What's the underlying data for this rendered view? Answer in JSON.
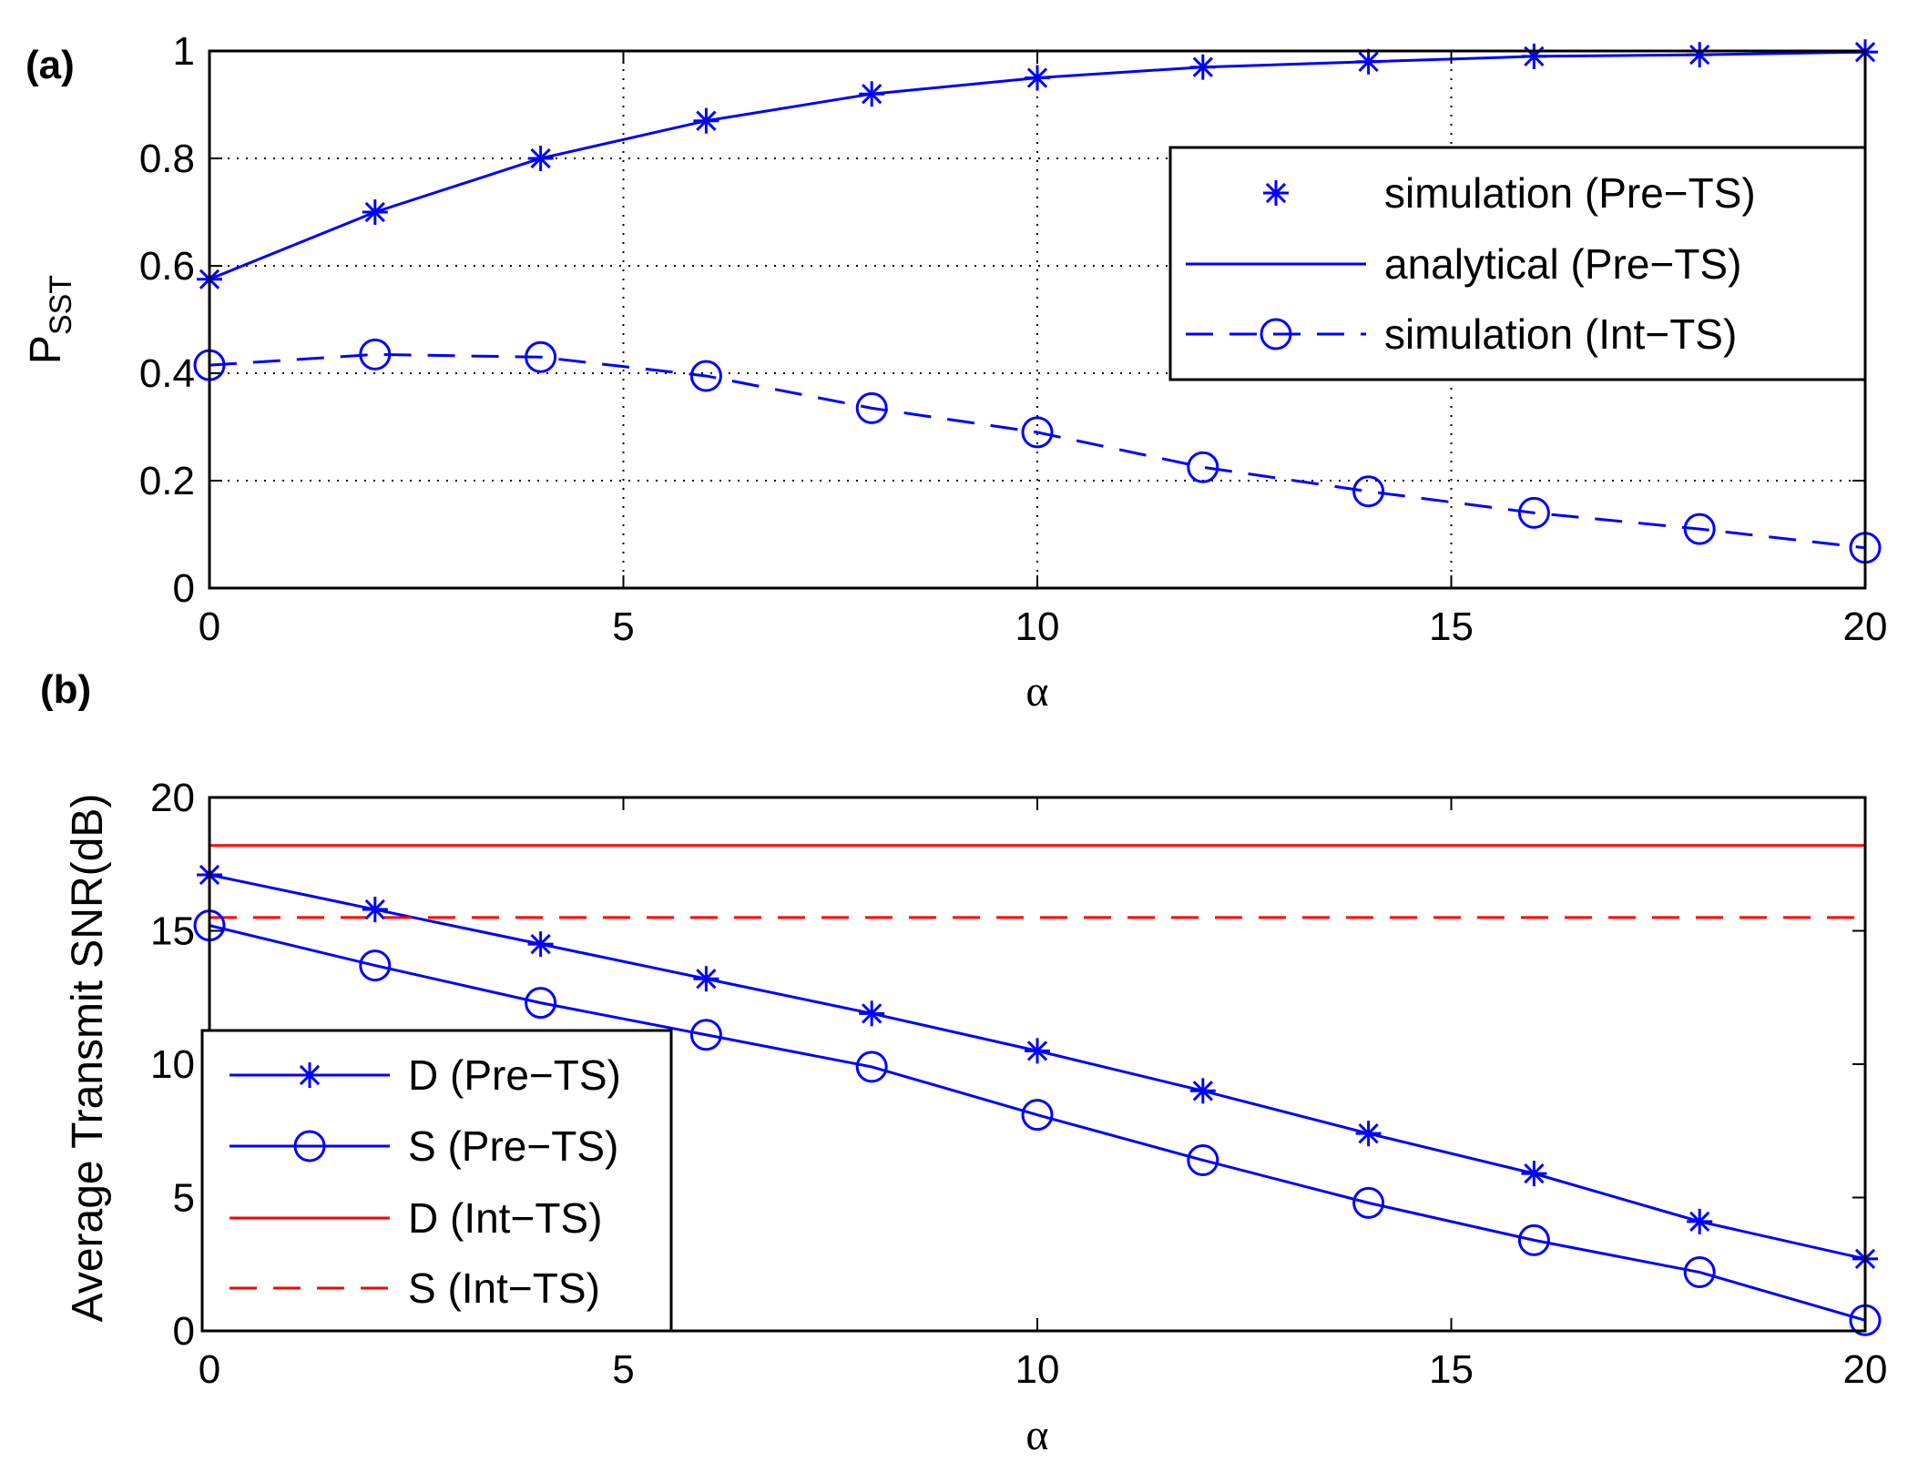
{
  "chart_data": [
    {
      "type": "line",
      "panel_label": "(a)",
      "xlabel": "α",
      "ylabel": "P",
      "ylabel_sub": "SST",
      "xlim": [
        0,
        20
      ],
      "ylim": [
        0,
        1
      ],
      "xticks": [
        0,
        5,
        10,
        15,
        20
      ],
      "xtick_labels": [
        "0",
        "5",
        "10",
        "15",
        "20"
      ],
      "yticks": [
        0,
        0.2,
        0.4,
        0.6,
        0.8,
        1
      ],
      "ytick_labels": [
        "0",
        "0.2",
        "0.4",
        "0.6",
        "0.8",
        "1"
      ],
      "grid": true,
      "legend_position": "upper-right",
      "x": [
        0,
        2,
        4,
        6,
        8,
        10,
        12,
        14,
        16,
        18,
        20
      ],
      "series": [
        {
          "name": "simulation (Pre−TS)",
          "values": [
            0.575,
            0.7,
            0.8,
            0.87,
            0.92,
            0.95,
            0.97,
            0.98,
            0.99,
            0.993,
            0.998
          ],
          "color": "#0000ff",
          "line": "none",
          "marker": "star"
        },
        {
          "name": "analytical (Pre−TS)",
          "values": [
            0.575,
            0.7,
            0.8,
            0.87,
            0.92,
            0.95,
            0.97,
            0.98,
            0.99,
            0.993,
            0.998
          ],
          "color": "#0000ff",
          "line": "solid",
          "marker": "none"
        },
        {
          "name": "simulation (Int−TS)",
          "values": [
            0.415,
            0.435,
            0.43,
            0.395,
            0.335,
            0.29,
            0.225,
            0.18,
            0.14,
            0.11,
            0.075
          ],
          "color": "#0000ff",
          "line": "dashed",
          "marker": "circle"
        }
      ]
    },
    {
      "type": "line",
      "panel_label": "(b)",
      "xlabel": "α",
      "ylabel": "Average Transmit SNR(dB)",
      "xlim": [
        0,
        20
      ],
      "ylim": [
        0,
        20
      ],
      "xticks": [
        0,
        5,
        10,
        15,
        20
      ],
      "xtick_labels": [
        "0",
        "5",
        "10",
        "15",
        "20"
      ],
      "yticks": [
        0,
        5,
        10,
        15,
        20
      ],
      "ytick_labels": [
        "0",
        "5",
        "10",
        "15",
        "20"
      ],
      "grid": false,
      "legend_position": "lower-left",
      "x": [
        0,
        2,
        4,
        6,
        8,
        10,
        12,
        14,
        16,
        18,
        20
      ],
      "series": [
        {
          "name": "D (Pre−TS)",
          "values": [
            17.1,
            15.8,
            14.5,
            13.2,
            11.9,
            10.5,
            9.0,
            7.4,
            5.9,
            4.1,
            2.7
          ],
          "color": "#0000ff",
          "line": "solid",
          "marker": "star"
        },
        {
          "name": "S (Pre−TS)",
          "values": [
            15.2,
            13.7,
            12.3,
            11.1,
            9.9,
            8.1,
            6.4,
            4.8,
            3.4,
            2.2,
            0.4
          ],
          "color": "#0000ff",
          "line": "solid",
          "marker": "circle"
        },
        {
          "name": "D (Int−TS)",
          "values": [
            18.2,
            18.2,
            18.2,
            18.2,
            18.2,
            18.2,
            18.2,
            18.2,
            18.2,
            18.2,
            18.2
          ],
          "color": "#ff0000",
          "line": "solid",
          "marker": "none"
        },
        {
          "name": "S (Int−TS)",
          "values": [
            15.5,
            15.5,
            15.5,
            15.5,
            15.5,
            15.5,
            15.5,
            15.5,
            15.5,
            15.5,
            15.5
          ],
          "color": "#ff0000",
          "line": "dashed",
          "marker": "none"
        }
      ]
    }
  ]
}
